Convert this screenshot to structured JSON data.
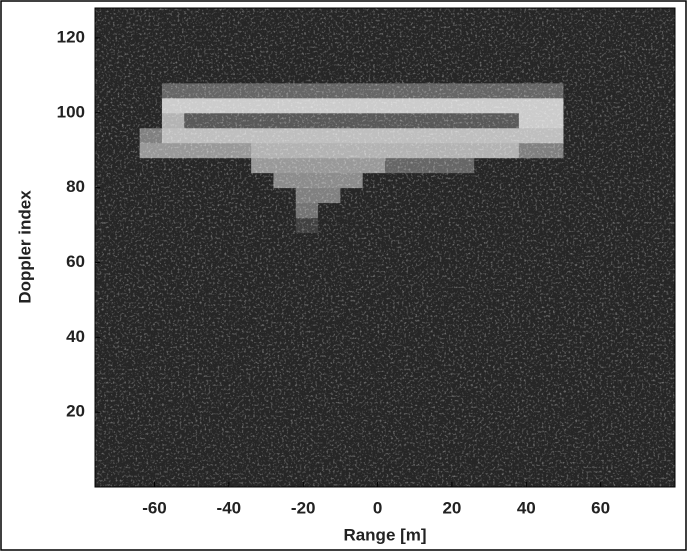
{
  "chart_data": {
    "type": "heatmap",
    "xlabel": "Range [m]",
    "ylabel": "Doppler index",
    "xlim": [
      -76,
      80
    ],
    "ylim": [
      0,
      128
    ],
    "xticks": [
      -60,
      -40,
      -20,
      0,
      20,
      40,
      60
    ],
    "yticks": [
      20,
      40,
      60,
      80,
      100,
      120
    ],
    "colormap": "gray",
    "x": [
      -73,
      -67,
      -61,
      -55,
      -49,
      -43,
      -37,
      -31,
      -25,
      -19,
      -13,
      -7,
      -1,
      5,
      11,
      17,
      23,
      29,
      35,
      41,
      47,
      53,
      59,
      65,
      71,
      77
    ],
    "y": [
      2,
      6,
      10,
      14,
      18,
      22,
      26,
      30,
      34,
      38,
      42,
      46,
      50,
      54,
      58,
      62,
      66,
      70,
      74,
      78,
      82,
      86,
      90,
      94,
      98,
      102,
      106,
      110,
      114,
      118,
      122,
      126
    ],
    "z": [
      [
        0.15,
        0.15,
        0.15,
        0.15,
        0.15,
        0.15,
        0.15,
        0.15,
        0.15,
        0.15,
        0.15,
        0.15,
        0.15,
        0.15,
        0.15,
        0.15,
        0.15,
        0.15,
        0.15,
        0.15,
        0.15,
        0.15,
        0.15,
        0.15,
        0.15,
        0.15
      ],
      [
        0.15,
        0.15,
        0.15,
        0.15,
        0.15,
        0.15,
        0.15,
        0.15,
        0.15,
        0.15,
        0.15,
        0.15,
        0.15,
        0.15,
        0.15,
        0.15,
        0.15,
        0.15,
        0.15,
        0.15,
        0.15,
        0.15,
        0.15,
        0.15,
        0.15,
        0.15
      ],
      [
        0.15,
        0.15,
        0.15,
        0.15,
        0.15,
        0.15,
        0.15,
        0.15,
        0.15,
        0.15,
        0.15,
        0.15,
        0.15,
        0.15,
        0.15,
        0.15,
        0.15,
        0.15,
        0.15,
        0.15,
        0.15,
        0.15,
        0.15,
        0.15,
        0.15,
        0.15
      ],
      [
        0.15,
        0.15,
        0.15,
        0.15,
        0.15,
        0.15,
        0.15,
        0.15,
        0.15,
        0.15,
        0.15,
        0.15,
        0.15,
        0.15,
        0.15,
        0.15,
        0.15,
        0.15,
        0.15,
        0.15,
        0.15,
        0.15,
        0.15,
        0.15,
        0.15,
        0.15
      ],
      [
        0.15,
        0.15,
        0.15,
        0.15,
        0.15,
        0.15,
        0.15,
        0.15,
        0.15,
        0.15,
        0.15,
        0.15,
        0.15,
        0.15,
        0.15,
        0.15,
        0.15,
        0.15,
        0.15,
        0.15,
        0.15,
        0.15,
        0.15,
        0.15,
        0.15,
        0.15
      ],
      [
        0.15,
        0.15,
        0.15,
        0.15,
        0.15,
        0.15,
        0.15,
        0.15,
        0.15,
        0.15,
        0.15,
        0.15,
        0.15,
        0.15,
        0.15,
        0.15,
        0.15,
        0.15,
        0.15,
        0.15,
        0.15,
        0.15,
        0.15,
        0.15,
        0.15,
        0.15
      ],
      [
        0.15,
        0.15,
        0.15,
        0.15,
        0.15,
        0.15,
        0.15,
        0.15,
        0.15,
        0.15,
        0.15,
        0.15,
        0.15,
        0.15,
        0.15,
        0.15,
        0.15,
        0.15,
        0.15,
        0.15,
        0.15,
        0.15,
        0.15,
        0.15,
        0.15,
        0.15
      ],
      [
        0.15,
        0.15,
        0.15,
        0.15,
        0.15,
        0.15,
        0.15,
        0.15,
        0.15,
        0.15,
        0.15,
        0.15,
        0.15,
        0.15,
        0.15,
        0.15,
        0.15,
        0.15,
        0.15,
        0.15,
        0.15,
        0.15,
        0.15,
        0.15,
        0.15,
        0.15
      ],
      [
        0.15,
        0.15,
        0.15,
        0.15,
        0.15,
        0.15,
        0.15,
        0.15,
        0.15,
        0.15,
        0.15,
        0.15,
        0.15,
        0.15,
        0.15,
        0.15,
        0.15,
        0.15,
        0.15,
        0.15,
        0.15,
        0.15,
        0.15,
        0.15,
        0.15,
        0.15
      ],
      [
        0.15,
        0.15,
        0.15,
        0.15,
        0.15,
        0.15,
        0.15,
        0.15,
        0.15,
        0.15,
        0.15,
        0.15,
        0.15,
        0.15,
        0.15,
        0.15,
        0.15,
        0.15,
        0.15,
        0.15,
        0.15,
        0.15,
        0.15,
        0.15,
        0.15,
        0.15
      ],
      [
        0.15,
        0.15,
        0.15,
        0.15,
        0.15,
        0.15,
        0.15,
        0.15,
        0.15,
        0.15,
        0.15,
        0.15,
        0.15,
        0.15,
        0.15,
        0.15,
        0.15,
        0.15,
        0.15,
        0.15,
        0.15,
        0.15,
        0.15,
        0.15,
        0.15,
        0.15
      ],
      [
        0.15,
        0.15,
        0.15,
        0.15,
        0.15,
        0.15,
        0.15,
        0.15,
        0.15,
        0.15,
        0.15,
        0.15,
        0.15,
        0.15,
        0.15,
        0.15,
        0.15,
        0.15,
        0.15,
        0.15,
        0.15,
        0.15,
        0.15,
        0.15,
        0.15,
        0.15
      ],
      [
        0.15,
        0.15,
        0.15,
        0.15,
        0.15,
        0.15,
        0.15,
        0.15,
        0.15,
        0.15,
        0.15,
        0.15,
        0.15,
        0.15,
        0.15,
        0.15,
        0.15,
        0.15,
        0.15,
        0.15,
        0.15,
        0.15,
        0.15,
        0.15,
        0.15,
        0.15
      ],
      [
        0.15,
        0.15,
        0.15,
        0.15,
        0.15,
        0.15,
        0.15,
        0.15,
        0.15,
        0.15,
        0.15,
        0.15,
        0.15,
        0.15,
        0.15,
        0.15,
        0.15,
        0.15,
        0.15,
        0.15,
        0.15,
        0.15,
        0.15,
        0.15,
        0.15,
        0.15
      ],
      [
        0.15,
        0.15,
        0.15,
        0.15,
        0.15,
        0.15,
        0.15,
        0.15,
        0.15,
        0.15,
        0.15,
        0.15,
        0.15,
        0.15,
        0.15,
        0.15,
        0.15,
        0.15,
        0.15,
        0.15,
        0.15,
        0.15,
        0.15,
        0.15,
        0.15,
        0.15
      ],
      [
        0.15,
        0.15,
        0.15,
        0.15,
        0.15,
        0.15,
        0.15,
        0.15,
        0.15,
        0.15,
        0.15,
        0.15,
        0.15,
        0.15,
        0.15,
        0.15,
        0.15,
        0.15,
        0.15,
        0.15,
        0.15,
        0.15,
        0.15,
        0.15,
        0.15,
        0.15
      ],
      [
        0.15,
        0.15,
        0.15,
        0.15,
        0.15,
        0.15,
        0.15,
        0.15,
        0.15,
        0.15,
        0.15,
        0.15,
        0.15,
        0.15,
        0.15,
        0.15,
        0.15,
        0.15,
        0.15,
        0.15,
        0.15,
        0.15,
        0.15,
        0.15,
        0.15,
        0.15
      ],
      [
        0.15,
        0.15,
        0.15,
        0.15,
        0.15,
        0.15,
        0.15,
        0.15,
        0.15,
        0.25,
        0.15,
        0.15,
        0.15,
        0.15,
        0.15,
        0.15,
        0.15,
        0.15,
        0.15,
        0.15,
        0.15,
        0.15,
        0.15,
        0.15,
        0.15,
        0.15
      ],
      [
        0.15,
        0.15,
        0.15,
        0.15,
        0.15,
        0.15,
        0.15,
        0.15,
        0.15,
        0.45,
        0.15,
        0.15,
        0.15,
        0.15,
        0.15,
        0.15,
        0.15,
        0.15,
        0.15,
        0.15,
        0.15,
        0.15,
        0.15,
        0.15,
        0.15,
        0.15
      ],
      [
        0.15,
        0.15,
        0.15,
        0.15,
        0.15,
        0.15,
        0.15,
        0.15,
        0.15,
        0.5,
        0.5,
        0.15,
        0.15,
        0.15,
        0.15,
        0.15,
        0.15,
        0.15,
        0.15,
        0.15,
        0.15,
        0.15,
        0.15,
        0.15,
        0.15,
        0.15
      ],
      [
        0.15,
        0.15,
        0.15,
        0.15,
        0.15,
        0.15,
        0.15,
        0.15,
        0.55,
        0.55,
        0.55,
        0.55,
        0.15,
        0.15,
        0.15,
        0.15,
        0.15,
        0.15,
        0.15,
        0.15,
        0.15,
        0.15,
        0.15,
        0.15,
        0.15,
        0.15
      ],
      [
        0.15,
        0.15,
        0.15,
        0.15,
        0.15,
        0.15,
        0.15,
        0.6,
        0.6,
        0.6,
        0.6,
        0.6,
        0.6,
        0.4,
        0.4,
        0.4,
        0.4,
        0.15,
        0.15,
        0.15,
        0.15,
        0.15,
        0.15,
        0.15,
        0.15,
        0.15
      ],
      [
        0.15,
        0.15,
        0.6,
        0.6,
        0.6,
        0.6,
        0.6,
        0.7,
        0.7,
        0.7,
        0.7,
        0.7,
        0.7,
        0.7,
        0.7,
        0.7,
        0.7,
        0.7,
        0.7,
        0.5,
        0.5,
        0.15,
        0.15,
        0.15,
        0.15,
        0.15
      ],
      [
        0.15,
        0.15,
        0.5,
        0.75,
        0.75,
        0.75,
        0.75,
        0.75,
        0.75,
        0.75,
        0.75,
        0.75,
        0.75,
        0.75,
        0.75,
        0.75,
        0.75,
        0.75,
        0.75,
        0.75,
        0.75,
        0.15,
        0.15,
        0.15,
        0.15,
        0.15
      ],
      [
        0.15,
        0.15,
        0.15,
        0.7,
        0.35,
        0.35,
        0.35,
        0.35,
        0.35,
        0.35,
        0.35,
        0.35,
        0.35,
        0.35,
        0.35,
        0.35,
        0.35,
        0.35,
        0.35,
        0.8,
        0.8,
        0.15,
        0.15,
        0.15,
        0.15,
        0.15
      ],
      [
        0.15,
        0.15,
        0.15,
        0.8,
        0.8,
        0.8,
        0.8,
        0.8,
        0.8,
        0.8,
        0.8,
        0.8,
        0.8,
        0.8,
        0.8,
        0.8,
        0.8,
        0.8,
        0.8,
        0.8,
        0.8,
        0.15,
        0.15,
        0.15,
        0.15,
        0.15
      ],
      [
        0.15,
        0.15,
        0.15,
        0.4,
        0.4,
        0.4,
        0.4,
        0.4,
        0.4,
        0.4,
        0.4,
        0.4,
        0.4,
        0.4,
        0.4,
        0.4,
        0.4,
        0.4,
        0.4,
        0.4,
        0.4,
        0.15,
        0.15,
        0.15,
        0.15,
        0.15
      ],
      [
        0.15,
        0.15,
        0.15,
        0.15,
        0.15,
        0.15,
        0.15,
        0.15,
        0.15,
        0.15,
        0.15,
        0.15,
        0.15,
        0.15,
        0.15,
        0.15,
        0.15,
        0.15,
        0.15,
        0.15,
        0.15,
        0.15,
        0.15,
        0.15,
        0.15,
        0.15
      ],
      [
        0.15,
        0.15,
        0.15,
        0.15,
        0.15,
        0.15,
        0.15,
        0.15,
        0.15,
        0.15,
        0.15,
        0.15,
        0.15,
        0.15,
        0.15,
        0.15,
        0.15,
        0.15,
        0.15,
        0.15,
        0.15,
        0.15,
        0.15,
        0.15,
        0.15,
        0.15
      ],
      [
        0.15,
        0.15,
        0.15,
        0.15,
        0.15,
        0.15,
        0.15,
        0.15,
        0.15,
        0.15,
        0.15,
        0.15,
        0.15,
        0.15,
        0.15,
        0.15,
        0.15,
        0.15,
        0.15,
        0.15,
        0.15,
        0.15,
        0.15,
        0.15,
        0.15,
        0.15
      ],
      [
        0.15,
        0.15,
        0.15,
        0.15,
        0.15,
        0.15,
        0.15,
        0.15,
        0.15,
        0.15,
        0.15,
        0.15,
        0.15,
        0.15,
        0.15,
        0.15,
        0.15,
        0.15,
        0.15,
        0.15,
        0.15,
        0.15,
        0.15,
        0.15,
        0.15,
        0.15
      ],
      [
        0.15,
        0.15,
        0.15,
        0.15,
        0.15,
        0.15,
        0.15,
        0.15,
        0.15,
        0.15,
        0.15,
        0.15,
        0.15,
        0.15,
        0.15,
        0.15,
        0.15,
        0.15,
        0.15,
        0.15,
        0.15,
        0.15,
        0.15,
        0.15,
        0.15,
        0.15
      ]
    ]
  }
}
